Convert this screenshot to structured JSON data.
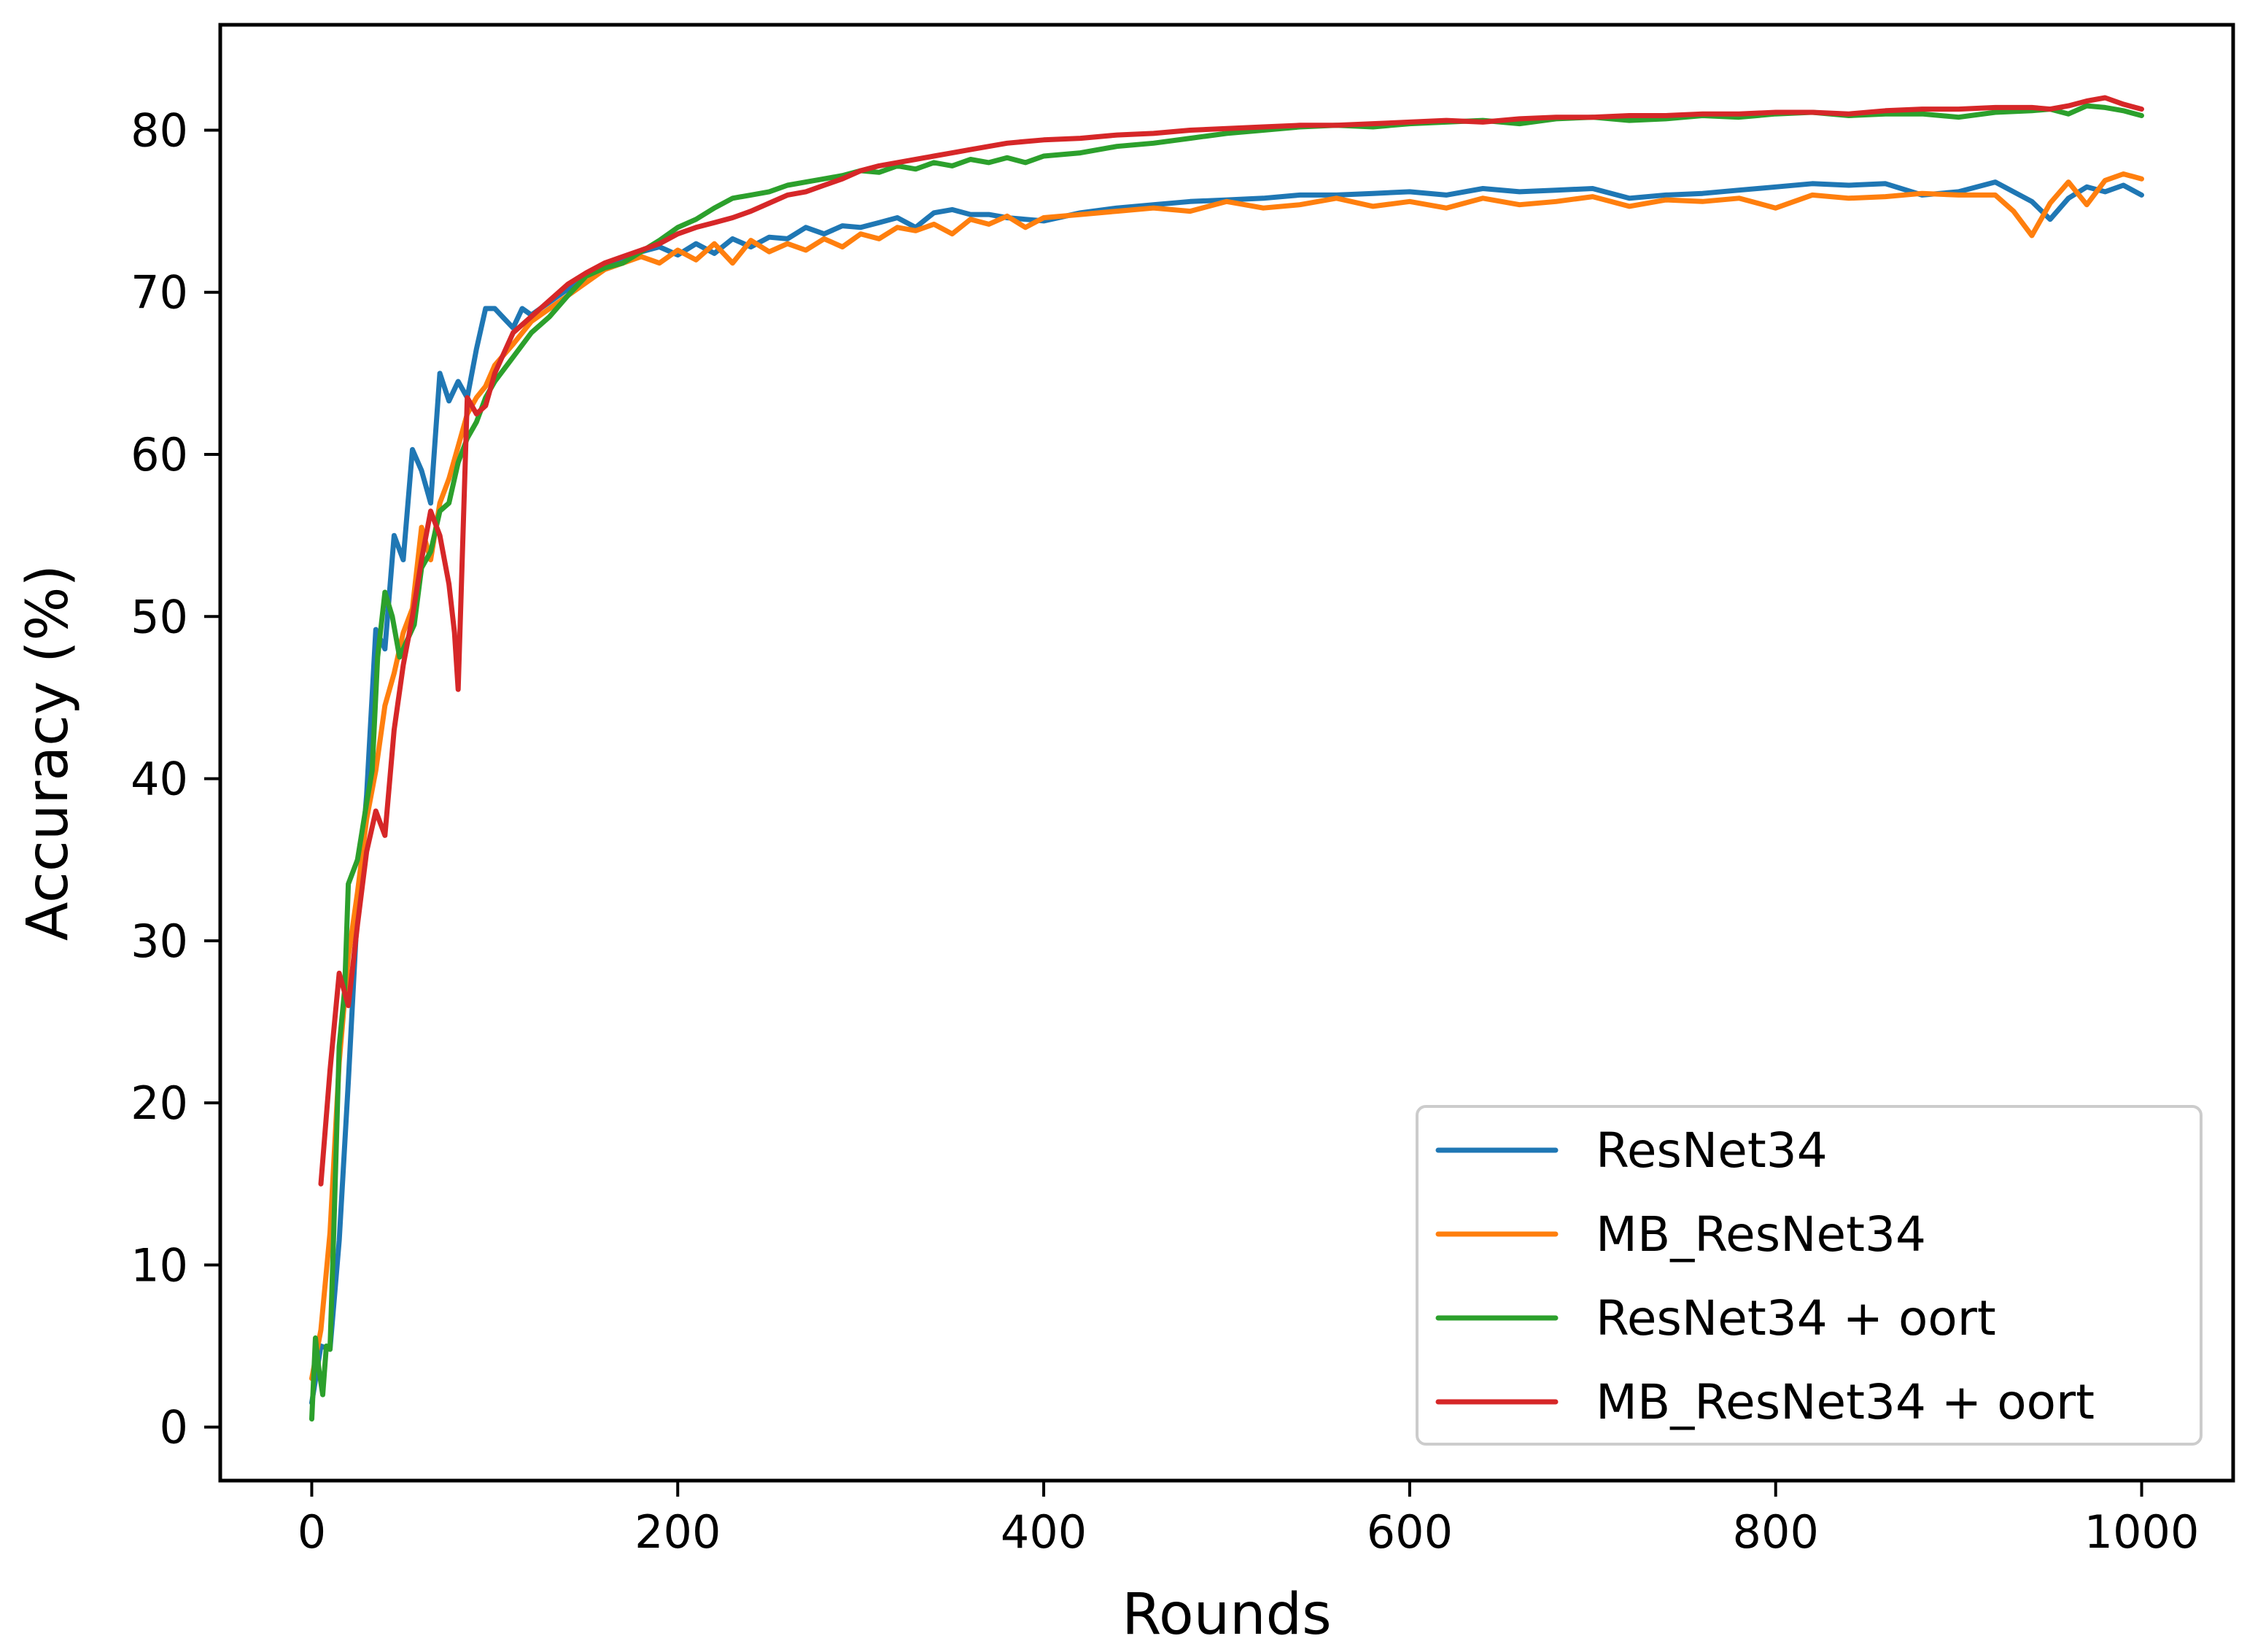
{
  "chart_data": {
    "type": "line",
    "title": "",
    "xlabel": "Rounds",
    "ylabel": "Accuracy (%)",
    "xlim": [
      -50,
      1050
    ],
    "ylim": [
      -3.3,
      86.5
    ],
    "xticks": [
      0,
      200,
      400,
      600,
      800,
      1000
    ],
    "yticks": [
      0,
      10,
      20,
      30,
      40,
      50,
      60,
      70,
      80
    ],
    "grid": false,
    "legend_position": "lower-right",
    "series": [
      {
        "name": "ResNet34",
        "color": "#1f77b4",
        "x": [
          0,
          5,
          10,
          15,
          20,
          25,
          30,
          35,
          40,
          45,
          50,
          55,
          60,
          65,
          70,
          75,
          80,
          85,
          90,
          95,
          100,
          105,
          110,
          115,
          120,
          130,
          140,
          150,
          160,
          170,
          180,
          190,
          200,
          210,
          220,
          230,
          240,
          250,
          260,
          270,
          280,
          290,
          300,
          310,
          320,
          330,
          340,
          350,
          360,
          370,
          380,
          390,
          400,
          420,
          440,
          460,
          480,
          500,
          520,
          540,
          560,
          580,
          600,
          620,
          640,
          660,
          680,
          700,
          720,
          740,
          760,
          780,
          800,
          820,
          840,
          860,
          880,
          900,
          920,
          940,
          950,
          960,
          970,
          980,
          990,
          1000
        ],
        "y": [
          1.5,
          5.0,
          4.8,
          11.5,
          21.3,
          32.0,
          39.0,
          49.2,
          48.0,
          55.0,
          53.5,
          60.3,
          59.0,
          57.0,
          65.0,
          63.3,
          64.5,
          63.5,
          66.5,
          69.0,
          69.0,
          68.4,
          67.8,
          69.0,
          68.6,
          69.4,
          70.2,
          71.0,
          71.7,
          72.0,
          72.5,
          72.8,
          72.3,
          73.0,
          72.4,
          73.3,
          72.8,
          73.4,
          73.3,
          74.0,
          73.6,
          74.1,
          74.0,
          74.3,
          74.6,
          74.0,
          74.9,
          75.1,
          74.8,
          74.8,
          74.6,
          74.5,
          74.4,
          74.9,
          75.2,
          75.4,
          75.6,
          75.7,
          75.8,
          76.0,
          76.0,
          76.1,
          76.2,
          76.0,
          76.4,
          76.2,
          76.3,
          76.4,
          75.8,
          76.0,
          76.1,
          76.3,
          76.5,
          76.7,
          76.6,
          76.7,
          76.0,
          76.2,
          76.8,
          75.6,
          74.5,
          75.8,
          76.5,
          76.2,
          76.6,
          76.0
        ]
      },
      {
        "name": "MB_ResNet34",
        "color": "#ff7f0e",
        "x": [
          0,
          5,
          10,
          15,
          20,
          25,
          30,
          35,
          40,
          45,
          50,
          55,
          60,
          65,
          70,
          75,
          80,
          85,
          90,
          95,
          100,
          110,
          120,
          130,
          140,
          150,
          160,
          170,
          180,
          190,
          200,
          210,
          220,
          230,
          240,
          250,
          260,
          270,
          280,
          290,
          300,
          310,
          320,
          330,
          340,
          350,
          360,
          370,
          380,
          390,
          400,
          420,
          440,
          460,
          480,
          500,
          520,
          540,
          560,
          580,
          600,
          620,
          640,
          660,
          680,
          700,
          720,
          740,
          760,
          780,
          800,
          820,
          840,
          860,
          880,
          900,
          920,
          930,
          940,
          950,
          960,
          970,
          980,
          990,
          1000
        ],
        "y": [
          3.0,
          6.0,
          12.0,
          22.5,
          29.0,
          33.0,
          37.5,
          40.5,
          44.5,
          46.5,
          49.0,
          50.5,
          55.5,
          53.5,
          57.0,
          58.5,
          60.5,
          62.5,
          63.5,
          64.2,
          65.5,
          66.8,
          68.2,
          69.0,
          69.8,
          70.6,
          71.4,
          71.8,
          72.2,
          71.8,
          72.6,
          72.0,
          73.0,
          71.8,
          73.2,
          72.5,
          73.0,
          72.6,
          73.3,
          72.8,
          73.6,
          73.3,
          74.0,
          73.8,
          74.2,
          73.6,
          74.5,
          74.2,
          74.7,
          74.0,
          74.6,
          74.8,
          75.0,
          75.2,
          75.0,
          75.6,
          75.2,
          75.4,
          75.8,
          75.3,
          75.6,
          75.2,
          75.8,
          75.4,
          75.6,
          75.9,
          75.3,
          75.7,
          75.6,
          75.8,
          75.2,
          76.0,
          75.8,
          75.9,
          76.1,
          76.0,
          76.0,
          75.0,
          73.5,
          75.5,
          76.8,
          75.4,
          76.9,
          77.3,
          77.0
        ]
      },
      {
        "name": "ResNet34 + oort",
        "color": "#2ca02c",
        "x": [
          0,
          2,
          4,
          6,
          8,
          10,
          12,
          15,
          18,
          20,
          25,
          30,
          33,
          36,
          40,
          44,
          48,
          52,
          56,
          60,
          65,
          70,
          75,
          80,
          85,
          90,
          95,
          100,
          110,
          120,
          130,
          140,
          150,
          160,
          170,
          180,
          190,
          200,
          210,
          220,
          230,
          240,
          250,
          260,
          270,
          280,
          290,
          300,
          310,
          320,
          330,
          340,
          350,
          360,
          370,
          380,
          390,
          400,
          420,
          440,
          460,
          480,
          500,
          520,
          540,
          560,
          580,
          600,
          620,
          640,
          660,
          680,
          700,
          720,
          740,
          760,
          780,
          800,
          820,
          840,
          860,
          880,
          900,
          920,
          940,
          950,
          960,
          970,
          980,
          990,
          1000
        ],
        "y": [
          0.5,
          5.5,
          3.5,
          2.0,
          5.0,
          4.8,
          12.0,
          23.5,
          27.0,
          33.5,
          35.0,
          38.5,
          40.5,
          47.5,
          51.5,
          50.0,
          47.5,
          48.5,
          49.5,
          53.0,
          54.0,
          56.5,
          57.0,
          59.5,
          61.0,
          62.0,
          63.5,
          64.5,
          66.0,
          67.5,
          68.5,
          69.8,
          71.0,
          71.5,
          71.8,
          72.5,
          73.2,
          74.0,
          74.5,
          75.2,
          75.8,
          76.0,
          76.2,
          76.6,
          76.8,
          77.0,
          77.2,
          77.5,
          77.4,
          77.8,
          77.6,
          78.0,
          77.8,
          78.2,
          78.0,
          78.3,
          78.0,
          78.4,
          78.6,
          79.0,
          79.2,
          79.5,
          79.8,
          80.0,
          80.2,
          80.3,
          80.2,
          80.4,
          80.5,
          80.6,
          80.4,
          80.7,
          80.8,
          80.6,
          80.7,
          80.9,
          80.8,
          81.0,
          81.1,
          80.9,
          81.0,
          81.0,
          80.8,
          81.1,
          81.2,
          81.3,
          81.0,
          81.5,
          81.4,
          81.2,
          80.9
        ]
      },
      {
        "name": "MB_ResNet34 + oort",
        "color": "#d62728",
        "x": [
          5,
          10,
          15,
          20,
          25,
          30,
          35,
          40,
          45,
          50,
          55,
          60,
          65,
          70,
          75,
          78,
          80,
          85,
          90,
          95,
          100,
          110,
          120,
          130,
          140,
          150,
          160,
          170,
          180,
          190,
          200,
          210,
          220,
          230,
          240,
          250,
          260,
          270,
          280,
          290,
          300,
          310,
          320,
          330,
          340,
          350,
          360,
          370,
          380,
          390,
          400,
          420,
          440,
          460,
          480,
          500,
          520,
          540,
          560,
          580,
          600,
          620,
          640,
          660,
          680,
          700,
          720,
          740,
          760,
          780,
          800,
          820,
          840,
          860,
          880,
          900,
          920,
          940,
          950,
          960,
          970,
          980,
          990,
          1000
        ],
        "y": [
          15.0,
          22.0,
          28.0,
          26.0,
          31.0,
          35.5,
          38.0,
          36.5,
          43.0,
          47.0,
          50.0,
          53.5,
          56.5,
          55.0,
          52.0,
          49.0,
          45.5,
          63.5,
          62.5,
          63.0,
          65.0,
          67.5,
          68.5,
          69.5,
          70.5,
          71.2,
          71.8,
          72.2,
          72.6,
          73.0,
          73.6,
          74.0,
          74.3,
          74.6,
          75.0,
          75.5,
          76.0,
          76.2,
          76.6,
          77.0,
          77.5,
          77.8,
          78.0,
          78.2,
          78.4,
          78.6,
          78.8,
          79.0,
          79.2,
          79.3,
          79.4,
          79.5,
          79.7,
          79.8,
          80.0,
          80.1,
          80.2,
          80.3,
          80.3,
          80.4,
          80.5,
          80.6,
          80.5,
          80.7,
          80.8,
          80.8,
          80.9,
          80.9,
          81.0,
          81.0,
          81.1,
          81.1,
          81.0,
          81.2,
          81.3,
          81.3,
          81.4,
          81.4,
          81.3,
          81.5,
          81.8,
          82.0,
          81.6,
          81.3
        ]
      }
    ]
  }
}
